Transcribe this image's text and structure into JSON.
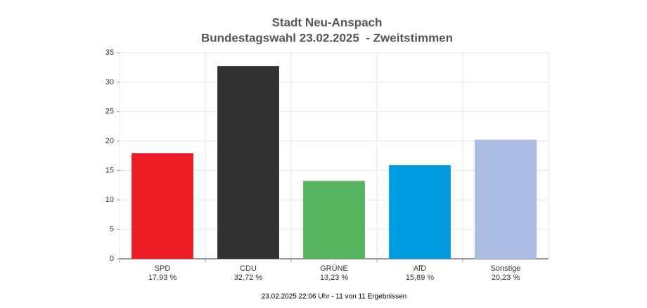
{
  "chart_data": {
    "type": "bar",
    "title": "Stadt Neu-Anspach",
    "subtitle": "Bundestagswahl 23.02.2025  - Zweitstimmen",
    "categories": [
      "SPD",
      "CDU",
      "GRÜNE",
      "AfD",
      "Sonstige"
    ],
    "values": [
      17.93,
      32.72,
      13.23,
      15.89,
      20.23
    ],
    "value_labels": [
      "17,93 %",
      "32,72 %",
      "13,23 %",
      "15,89 %",
      "20,23 %"
    ],
    "colors": [
      "#ec1c24",
      "#333132",
      "#57b562",
      "#009ee0",
      "#abbde5"
    ],
    "ylim": [
      0,
      35
    ],
    "yticks": [
      0,
      5,
      10,
      15,
      20,
      25,
      30,
      35
    ],
    "grid": true,
    "footer": "23.02.2025 22:06 Uhr - 11 von 11 Ergebnissen"
  }
}
